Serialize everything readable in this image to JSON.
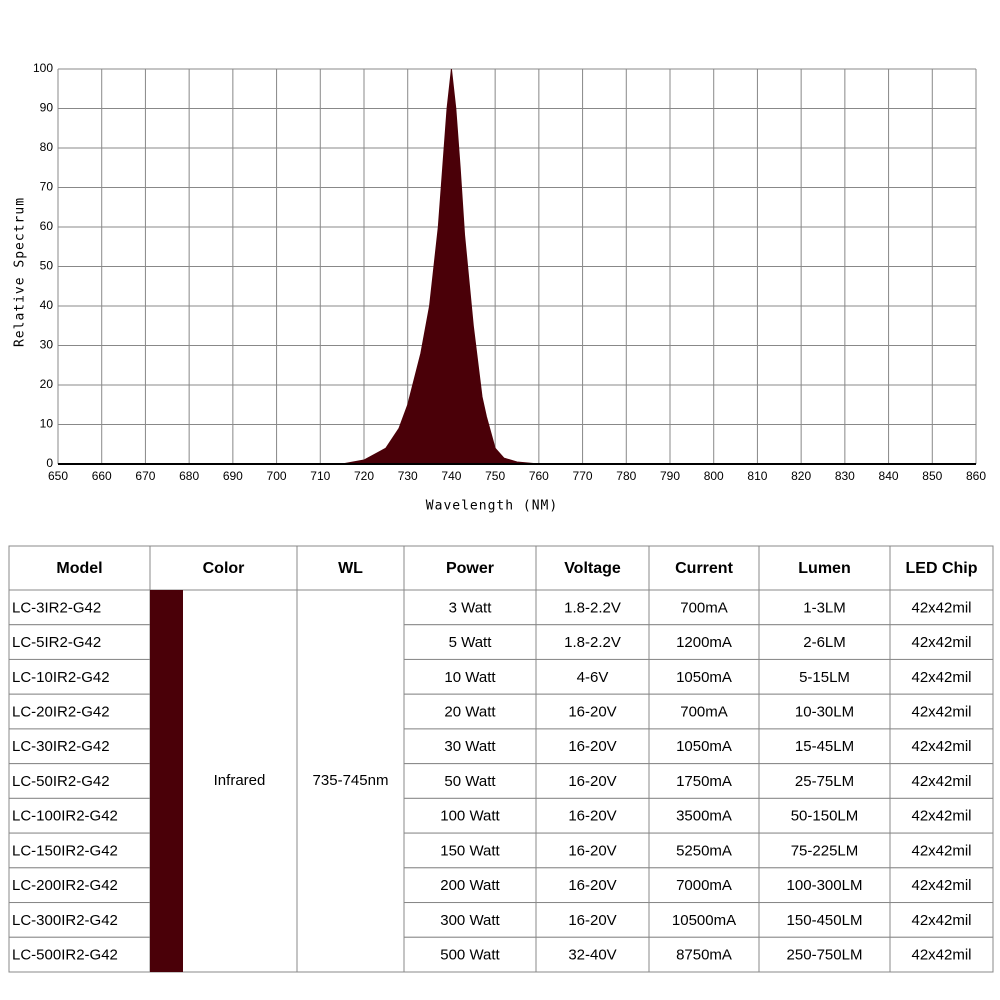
{
  "chart_data": {
    "type": "area",
    "x": [
      650,
      715,
      720,
      725,
      728,
      730,
      733,
      735,
      737,
      738,
      739,
      740,
      741,
      742,
      743,
      745,
      747,
      748,
      750,
      752,
      755,
      760,
      860
    ],
    "values": [
      0,
      0,
      1,
      4,
      9,
      15,
      28,
      40,
      60,
      75,
      90,
      100,
      90,
      75,
      58,
      35,
      17,
      12,
      4,
      1.5,
      0.5,
      0,
      0
    ],
    "color": "#4a0008",
    "xlabel": "Wavelength (NM)",
    "ylabel": "Relative Spectrum",
    "xlim": [
      650,
      860
    ],
    "ylim": [
      0,
      100
    ],
    "xticks": [
      650,
      660,
      670,
      680,
      690,
      700,
      710,
      720,
      730,
      740,
      750,
      760,
      770,
      780,
      790,
      800,
      810,
      820,
      830,
      840,
      850,
      860
    ],
    "yticks": [
      0,
      10,
      20,
      30,
      40,
      50,
      60,
      70,
      80,
      90,
      100
    ],
    "grid": true
  },
  "table": {
    "columns": [
      "Model",
      "Color",
      "WL",
      "Power",
      "Voltage",
      "Current",
      "Lumen",
      "LED Chip"
    ],
    "color": "Infrared",
    "wl": "735-745nm",
    "swatch_color": "#4a0008",
    "rows": [
      [
        "LC-3IR2-G42",
        "3 Watt",
        "1.8-2.2V",
        "700mA",
        "1-3LM",
        "42x42mil"
      ],
      [
        "LC-5IR2-G42",
        "5 Watt",
        "1.8-2.2V",
        "1200mA",
        "2-6LM",
        "42x42mil"
      ],
      [
        "LC-10IR2-G42",
        "10 Watt",
        "4-6V",
        "1050mA",
        "5-15LM",
        "42x42mil"
      ],
      [
        "LC-20IR2-G42",
        "20 Watt",
        "16-20V",
        "700mA",
        "10-30LM",
        "42x42mil"
      ],
      [
        "LC-30IR2-G42",
        "30 Watt",
        "16-20V",
        "1050mA",
        "15-45LM",
        "42x42mil"
      ],
      [
        "LC-50IR2-G42",
        "50 Watt",
        "16-20V",
        "1750mA",
        "25-75LM",
        "42x42mil"
      ],
      [
        "LC-100IR2-G42",
        "100 Watt",
        "16-20V",
        "3500mA",
        "50-150LM",
        "42x42mil"
      ],
      [
        "LC-150IR2-G42",
        "150 Watt",
        "16-20V",
        "5250mA",
        "75-225LM",
        "42x42mil"
      ],
      [
        "LC-200IR2-G42",
        "200 Watt",
        "16-20V",
        "7000mA",
        "100-300LM",
        "42x42mil"
      ],
      [
        "LC-300IR2-G42",
        "300 Watt",
        "16-20V",
        "10500mA",
        "150-450LM",
        "42x42mil"
      ],
      [
        "LC-500IR2-G42",
        "500 Watt",
        "32-40V",
        "8750mA",
        "250-750LM",
        "42x42mil"
      ]
    ]
  }
}
